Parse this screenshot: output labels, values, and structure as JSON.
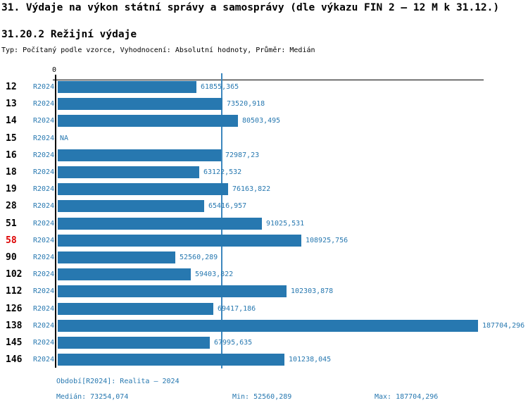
{
  "title": "31. Výdaje na výkon státní správy a samosprávy (dle výkazu FIN 2 – 12 M k 31.12.)",
  "subtitle": "31.20.2 Režijní výdaje",
  "meta": "Typ: Počítaný podle vzorce, Vyhodnocení: Absolutní hodnoty, Průměr: Medián",
  "axis": {
    "zero_label": "0"
  },
  "colors": {
    "bar": "#2778b0",
    "text_blue": "#2778b0",
    "highlight_red": "#dd0000",
    "axis_black": "#000000",
    "median_line": "#3d87bd"
  },
  "chart_data": {
    "type": "bar",
    "orientation": "horizontal",
    "title": "31.20.2 Režijní výdaje",
    "series_name": "R2024",
    "xlim": [
      0,
      190000
    ],
    "grid": false,
    "median_reference_line": 73254.074,
    "categories": [
      "12",
      "13",
      "14",
      "15",
      "16",
      "18",
      "19",
      "28",
      "51",
      "58",
      "90",
      "102",
      "112",
      "126",
      "138",
      "145",
      "146"
    ],
    "rows": [
      {
        "category": "12",
        "period": "R2024",
        "value": 61855.365,
        "label": "61855,365",
        "highlight": false
      },
      {
        "category": "13",
        "period": "R2024",
        "value": 73520.918,
        "label": "73520,918",
        "highlight": false
      },
      {
        "category": "14",
        "period": "R2024",
        "value": 80503.495,
        "label": "80503,495",
        "highlight": false
      },
      {
        "category": "15",
        "period": "R2024",
        "value": null,
        "label": "NA",
        "highlight": false
      },
      {
        "category": "16",
        "period": "R2024",
        "value": 72987.23,
        "label": "72987,23",
        "highlight": false
      },
      {
        "category": "18",
        "period": "R2024",
        "value": 63122.532,
        "label": "63122,532",
        "highlight": false
      },
      {
        "category": "19",
        "period": "R2024",
        "value": 76163.822,
        "label": "76163,822",
        "highlight": false
      },
      {
        "category": "28",
        "period": "R2024",
        "value": 65416.957,
        "label": "65416,957",
        "highlight": false
      },
      {
        "category": "51",
        "period": "R2024",
        "value": 91025.531,
        "label": "91025,531",
        "highlight": false
      },
      {
        "category": "58",
        "period": "R2024",
        "value": 108925.756,
        "label": "108925,756",
        "highlight": true
      },
      {
        "category": "90",
        "period": "R2024",
        "value": 52560.289,
        "label": "52560,289",
        "highlight": false
      },
      {
        "category": "102",
        "period": "R2024",
        "value": 59403.822,
        "label": "59403,822",
        "highlight": false
      },
      {
        "category": "112",
        "period": "R2024",
        "value": 102303.878,
        "label": "102303,878",
        "highlight": false
      },
      {
        "category": "126",
        "period": "R2024",
        "value": 69417.186,
        "label": "69417,186",
        "highlight": false
      },
      {
        "category": "138",
        "period": "R2024",
        "value": 187704.296,
        "label": "187704,296",
        "highlight": false
      },
      {
        "category": "145",
        "period": "R2024",
        "value": 67995.635,
        "label": "67995,635",
        "highlight": false
      },
      {
        "category": "146",
        "period": "R2024",
        "value": 101238.045,
        "label": "101238,045",
        "highlight": false
      }
    ]
  },
  "footer": {
    "period_label": "Období[R2024]: Realita – 2024",
    "median_label": "Medián: 73254,074",
    "min_label": "Min: 52560,289",
    "max_label": "Max: 187704,296"
  }
}
